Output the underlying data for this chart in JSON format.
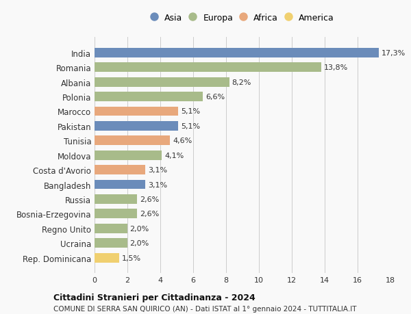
{
  "countries": [
    "India",
    "Romania",
    "Albania",
    "Polonia",
    "Marocco",
    "Pakistan",
    "Tunisia",
    "Moldova",
    "Costa d'Avorio",
    "Bangladesh",
    "Russia",
    "Bosnia-Erzegovina",
    "Regno Unito",
    "Ucraina",
    "Rep. Dominicana"
  ],
  "values": [
    17.3,
    13.8,
    8.2,
    6.6,
    5.1,
    5.1,
    4.6,
    4.1,
    3.1,
    3.1,
    2.6,
    2.6,
    2.0,
    2.0,
    1.5
  ],
  "labels": [
    "17,3%",
    "13,8%",
    "8,2%",
    "6,6%",
    "5,1%",
    "5,1%",
    "4,6%",
    "4,1%",
    "3,1%",
    "3,1%",
    "2,6%",
    "2,6%",
    "2,0%",
    "2,0%",
    "1,5%"
  ],
  "continents": [
    "Asia",
    "Europa",
    "Europa",
    "Europa",
    "Africa",
    "Asia",
    "Africa",
    "Europa",
    "Africa",
    "Asia",
    "Europa",
    "Europa",
    "Europa",
    "Europa",
    "America"
  ],
  "colors": {
    "Asia": "#6b8cba",
    "Europa": "#a8bb8a",
    "Africa": "#e8a87c",
    "America": "#f0d070"
  },
  "legend_order": [
    "Asia",
    "Europa",
    "Africa",
    "America"
  ],
  "title": "Cittadini Stranieri per Cittadinanza - 2024",
  "subtitle": "COMUNE DI SERRA SAN QUIRICO (AN) - Dati ISTAT al 1° gennaio 2024 - TUTTITALIA.IT",
  "xlim": [
    0,
    18
  ],
  "xticks": [
    0,
    2,
    4,
    6,
    8,
    10,
    12,
    14,
    16,
    18
  ],
  "bg_color": "#f9f9f9",
  "grid_color": "#cccccc"
}
